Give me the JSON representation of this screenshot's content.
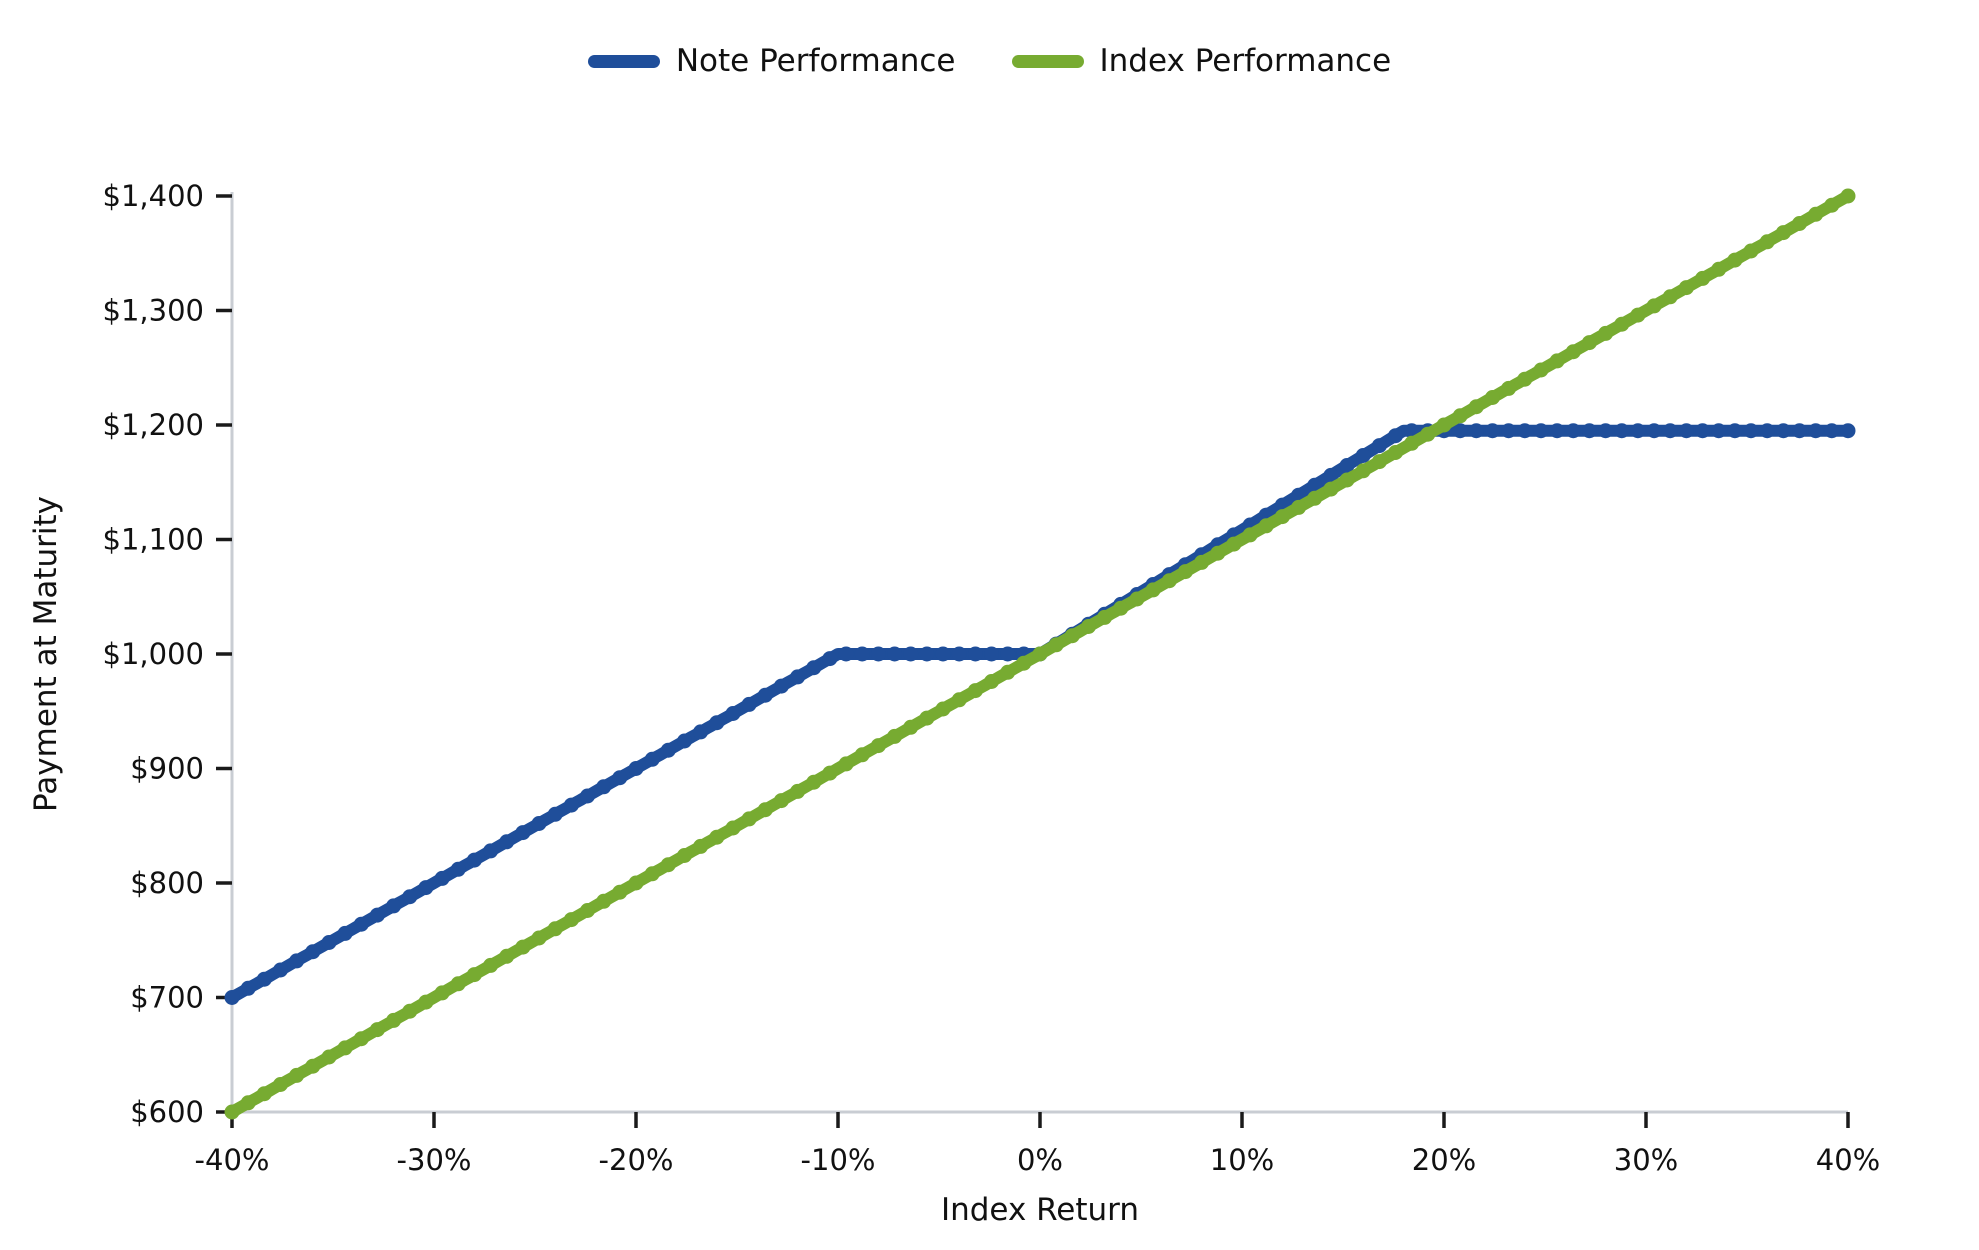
{
  "legend": {
    "items": [
      {
        "label": "Note Performance",
        "color": "#1f4e9a"
      },
      {
        "label": "Index Performance",
        "color": "#77ab31"
      }
    ]
  },
  "chart_data": {
    "type": "line",
    "title": "",
    "xlabel": "Index Return",
    "ylabel": "Payment at Maturity",
    "xlim": [
      -40,
      40
    ],
    "ylim": [
      600,
      1400
    ],
    "grid": false,
    "legend_position": "top-center",
    "x_ticks": [
      {
        "v": -40,
        "label": "-40%"
      },
      {
        "v": -30,
        "label": "-30%"
      },
      {
        "v": -20,
        "label": "-20%"
      },
      {
        "v": -10,
        "label": "-10%"
      },
      {
        "v": 0,
        "label": "0%"
      },
      {
        "v": 10,
        "label": "10%"
      },
      {
        "v": 20,
        "label": "20%"
      },
      {
        "v": 30,
        "label": "30%"
      },
      {
        "v": 40,
        "label": "40%"
      }
    ],
    "y_ticks": [
      {
        "v": 600,
        "label": "$600"
      },
      {
        "v": 700,
        "label": "$700"
      },
      {
        "v": 800,
        "label": "$800"
      },
      {
        "v": 900,
        "label": "$900"
      },
      {
        "v": 1000,
        "label": "$1,000"
      },
      {
        "v": 1100,
        "label": "$1,100"
      },
      {
        "v": 1200,
        "label": "$1,200"
      },
      {
        "v": 1300,
        "label": "$1,300"
      },
      {
        "v": 1400,
        "label": "$1,400"
      }
    ],
    "series": [
      {
        "name": "Note Performance",
        "color": "#1f4e9a",
        "points": [
          [
            -40,
            700
          ],
          [
            -10,
            1000
          ],
          [
            0,
            1000
          ],
          [
            18,
            1195
          ],
          [
            40,
            1195
          ]
        ]
      },
      {
        "name": "Index Performance",
        "color": "#77ab31",
        "points": [
          [
            -40,
            600
          ],
          [
            0,
            1000
          ],
          [
            40,
            1400
          ]
        ]
      }
    ],
    "styles": {
      "spine_color": "#c9cdd3",
      "tick_color": "#1a1a1a",
      "label_color": "#111111"
    }
  }
}
